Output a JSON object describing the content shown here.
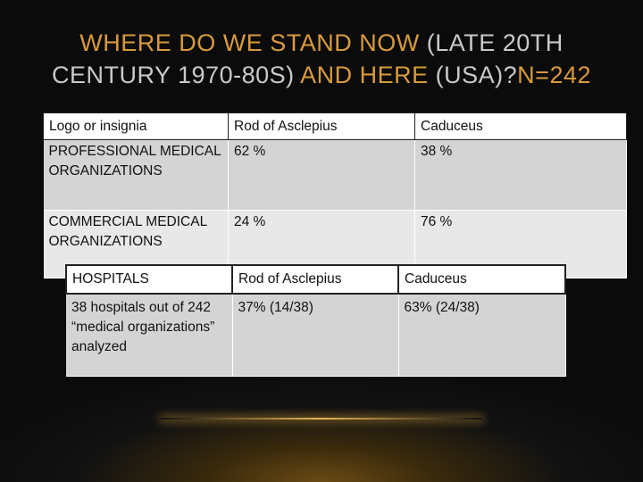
{
  "title": {
    "line1_part1": "WHERE DO WE STAND NOW ",
    "line1_part2": "(LATE 20TH",
    "line2_part1": "CENTURY 1970-80S) ",
    "line2_part2": "AND HERE ",
    "line2_part3": "(USA)?",
    "line2_part4": "N=242"
  },
  "table1": {
    "headers": [
      "Logo or insignia",
      "Rod of Asclepius",
      "Caduceus"
    ],
    "rows": [
      [
        "PROFESSIONAL MEDICAL ORGANIZATIONS",
        "62 %",
        "38 %"
      ],
      [
        "COMMERCIAL MEDICAL ORGANIZATIONS",
        "24 %",
        "76 %"
      ]
    ]
  },
  "table2": {
    "headers": [
      "HOSPITALS",
      "Rod of Asclepius",
      "Caduceus"
    ],
    "rows": [
      [
        "38 hospitals out of 242 “medical organizations” analyzed",
        "37% (14/38)",
        "63% (24/38)"
      ]
    ]
  },
  "colors": {
    "title_orange": "#d89a3c",
    "title_gray": "#c9c9c9",
    "background": "#0b0b0b"
  }
}
